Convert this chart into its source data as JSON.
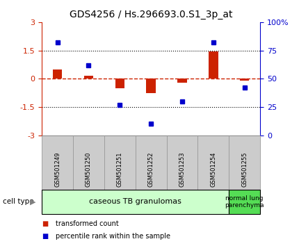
{
  "title": "GDS4256 / Hs.296693.0.S1_3p_at",
  "samples": [
    "GSM501249",
    "GSM501250",
    "GSM501251",
    "GSM501252",
    "GSM501253",
    "GSM501254",
    "GSM501255"
  ],
  "red_values": [
    0.5,
    0.15,
    -0.5,
    -0.75,
    -0.2,
    1.45,
    -0.1
  ],
  "blue_pct": [
    82,
    62,
    27,
    10,
    30,
    82,
    42
  ],
  "red_ylim": [
    -3,
    3
  ],
  "blue_ylim": [
    0,
    100
  ],
  "red_yticks": [
    -3,
    -1.5,
    0,
    1.5,
    3
  ],
  "blue_yticks": [
    0,
    25,
    50,
    75,
    100
  ],
  "blue_ytick_labels": [
    "0",
    "25",
    "50",
    "75",
    "100%"
  ],
  "dotted_lines": [
    -1.5,
    1.5
  ],
  "n_group1": 6,
  "group1_label": "caseous TB granulomas",
  "group2_label": "normal lung\nparenchyma",
  "cell_type_label": "cell type",
  "legend1": "transformed count",
  "legend2": "percentile rank within the sample",
  "red_color": "#cc2200",
  "blue_color": "#0000cc",
  "group1_bg": "#ccffcc",
  "group2_bg": "#55dd55",
  "sample_bg": "#cccccc",
  "sample_border": "#999999"
}
